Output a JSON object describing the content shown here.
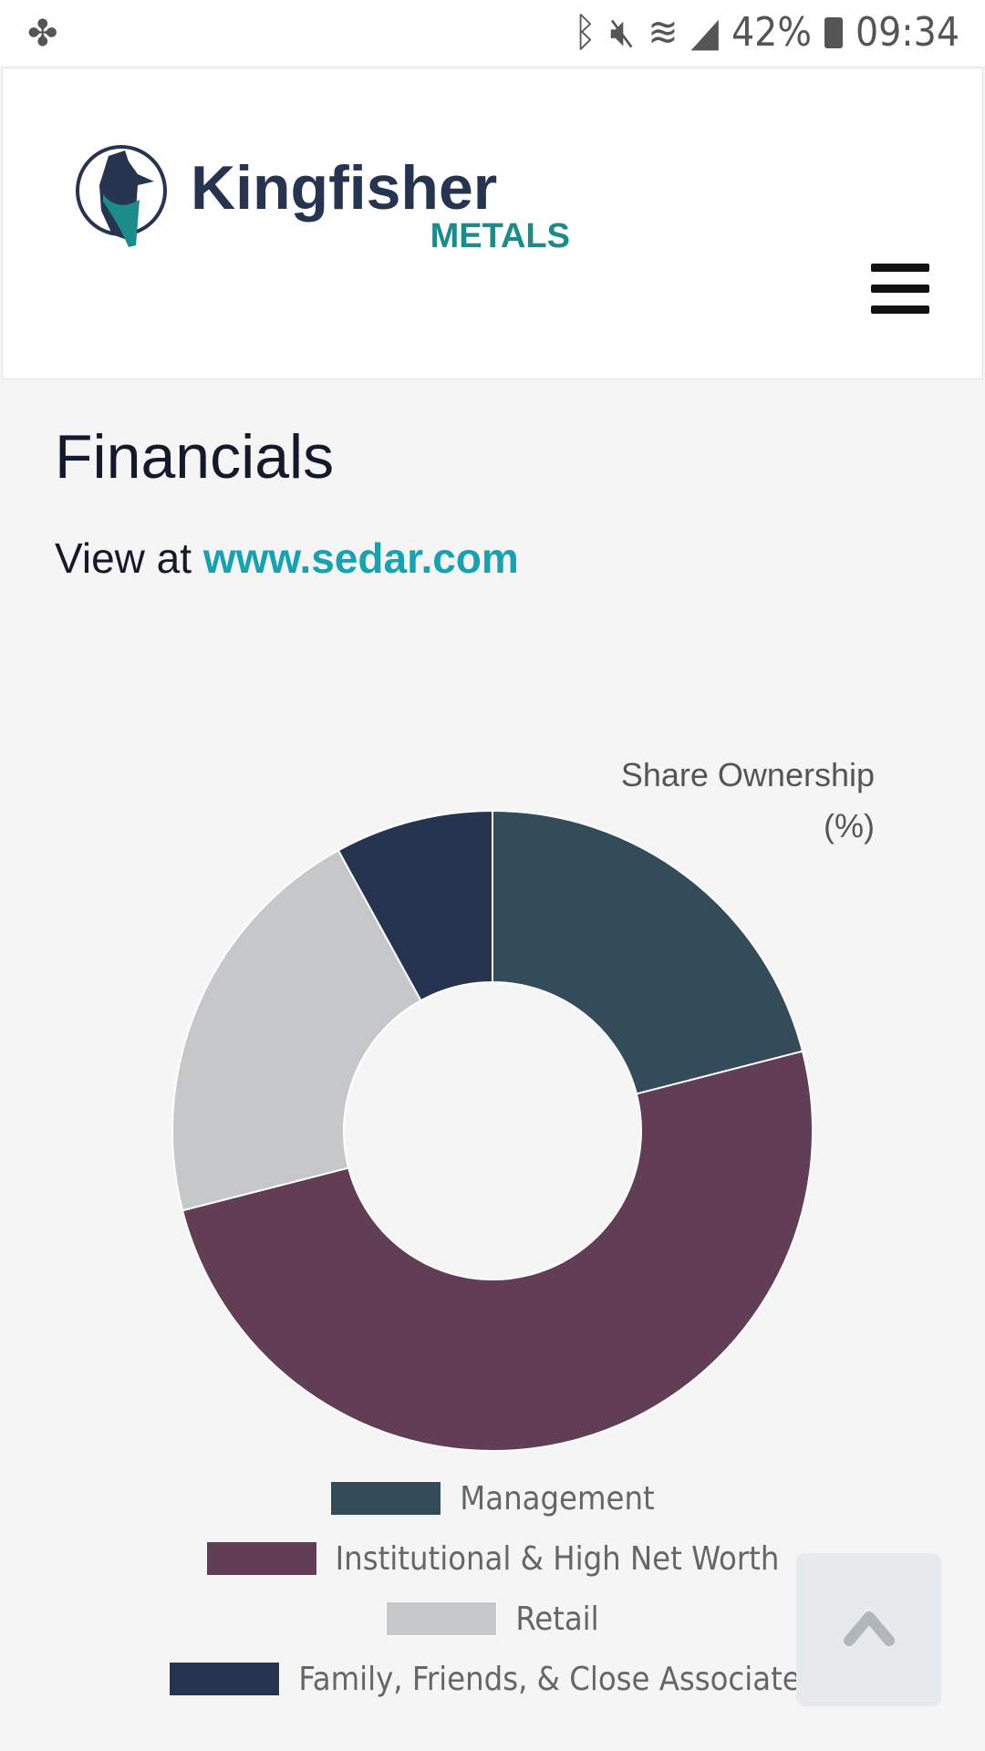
{
  "status_bar": {
    "battery": "42%",
    "time": "09:34",
    "icons": [
      "pinwheel-icon",
      "bluetooth-icon",
      "mute-icon",
      "wifi-icon",
      "signal-icon",
      "battery-icon"
    ]
  },
  "header": {
    "logo_text": "Kingfisher",
    "logo_subtext": "METALS",
    "menu_icon": "hamburger-icon"
  },
  "page": {
    "title": "Financials",
    "view_prefix": "View at",
    "view_link": "www.sedar.com"
  },
  "chart_data": {
    "type": "pie",
    "variant": "doughnut",
    "title_lines": [
      "Share Ownership",
      "(%)"
    ],
    "categories": [
      "Management",
      "Institutional & High Net Worth",
      "Retail",
      "Family, Friends, & Close Associates"
    ],
    "values": [
      21,
      50,
      21,
      8
    ],
    "colors": [
      "#344c5a",
      "#613e55",
      "#c6c7c9",
      "#27344f"
    ],
    "legend_position": "bottom"
  },
  "scroll_top": {
    "icon": "chevron-up-icon"
  }
}
